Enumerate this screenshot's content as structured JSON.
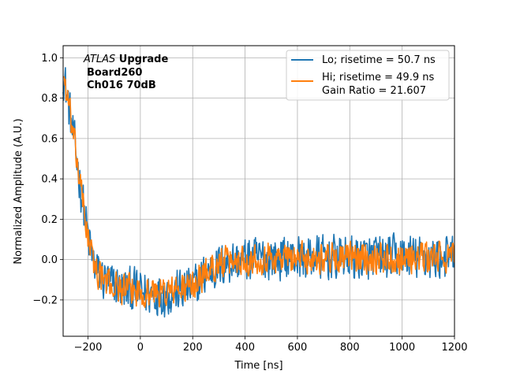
{
  "chart_data": {
    "type": "line",
    "title": "",
    "xlabel": "Time [ns]",
    "ylabel": "Normalized Amplitude (A.U.)",
    "xlim": [
      -295,
      1200
    ],
    "ylim": [
      -0.38,
      1.06
    ],
    "xticks": [
      -200,
      0,
      200,
      400,
      600,
      800,
      1000,
      1200
    ],
    "xtick_labels": [
      "−200",
      "0",
      "200",
      "400",
      "600",
      "800",
      "1000",
      "1200"
    ],
    "yticks": [
      -0.2,
      0.0,
      0.2,
      0.4,
      0.6,
      0.8,
      1.0
    ],
    "ytick_labels": [
      "−0.2",
      "0.0",
      "0.2",
      "0.4",
      "0.6",
      "0.8",
      "1.0"
    ],
    "grid": true,
    "legend_position": "top-right",
    "annotation": {
      "italic": "ATLAS",
      "bold1": " Upgrade",
      "line2": "Board260",
      "line3": "Ch016 70dB"
    },
    "series": [
      {
        "name": "Lo; risetime = 50.7 ns",
        "color": "#1f77b4",
        "noise": 0.065,
        "x": [
          -295,
          -285,
          -270,
          -255,
          -240,
          -225,
          -210,
          -195,
          -180,
          -160,
          -140,
          -120,
          -100,
          -80,
          -50,
          0,
          50,
          100,
          150,
          200,
          230,
          260,
          300,
          350,
          400,
          500,
          600,
          700,
          800,
          900,
          1000,
          1100,
          1200
        ],
        "y": [
          0.93,
          0.85,
          0.73,
          0.6,
          0.47,
          0.33,
          0.2,
          0.08,
          -0.01,
          -0.07,
          -0.1,
          -0.12,
          -0.13,
          -0.14,
          -0.15,
          -0.16,
          -0.17,
          -0.17,
          -0.16,
          -0.14,
          -0.1,
          -0.06,
          -0.03,
          -0.01,
          0.0,
          0.01,
          0.01,
          0.01,
          0.01,
          0.01,
          0.01,
          0.01,
          0.01
        ]
      },
      {
        "name": "Hi; risetime = 49.9 ns",
        "name2": " Gain Ratio = 21.607",
        "color": "#ff7f0e",
        "noise": 0.045,
        "x": [
          -295,
          -285,
          -270,
          -255,
          -240,
          -225,
          -210,
          -195,
          -180,
          -160,
          -140,
          -120,
          -100,
          -80,
          -50,
          0,
          50,
          100,
          150,
          200,
          230,
          260,
          300,
          350,
          400,
          500,
          600,
          700,
          800,
          900,
          1000,
          1100,
          1200
        ],
        "y": [
          0.93,
          0.85,
          0.73,
          0.6,
          0.47,
          0.33,
          0.2,
          0.08,
          -0.01,
          -0.07,
          -0.1,
          -0.12,
          -0.13,
          -0.14,
          -0.15,
          -0.16,
          -0.16,
          -0.16,
          -0.15,
          -0.13,
          -0.09,
          -0.05,
          -0.02,
          -0.01,
          0.0,
          0.01,
          0.01,
          0.01,
          0.01,
          0.01,
          0.01,
          0.01,
          0.01
        ]
      }
    ]
  }
}
